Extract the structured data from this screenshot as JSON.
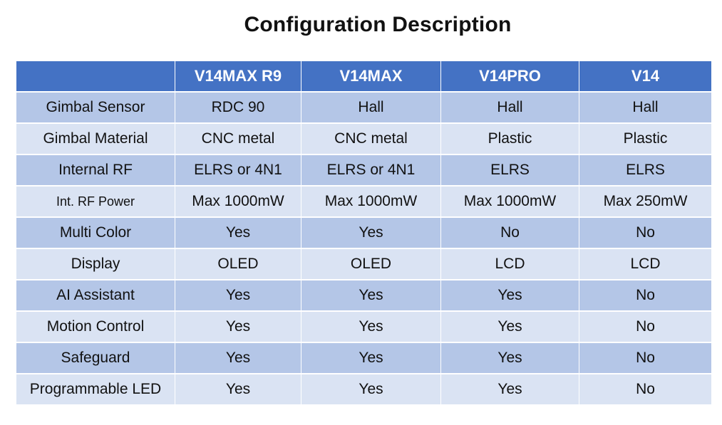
{
  "title": "Configuration Description",
  "table": {
    "headers": [
      "",
      "V14MAX R9",
      "V14MAX",
      "V14PRO",
      "V14"
    ],
    "rows": [
      {
        "label": "Gimbal Sensor",
        "values": [
          "RDC 90",
          "Hall",
          "Hall",
          "Hall"
        ]
      },
      {
        "label": "Gimbal Material",
        "values": [
          "CNC metal",
          "CNC metal",
          "Plastic",
          "Plastic"
        ]
      },
      {
        "label": "Internal RF",
        "values": [
          "ELRS or 4N1",
          "ELRS or 4N1",
          "ELRS",
          "ELRS"
        ]
      },
      {
        "label": "Int. RF Power",
        "values": [
          "Max 1000mW",
          "Max 1000mW",
          "Max 1000mW",
          "Max 250mW"
        ]
      },
      {
        "label": "Multi Color",
        "values": [
          "Yes",
          "Yes",
          "No",
          "No"
        ]
      },
      {
        "label": "Display",
        "values": [
          "OLED",
          "OLED",
          "LCD",
          "LCD"
        ]
      },
      {
        "label": "AI Assistant",
        "values": [
          "Yes",
          "Yes",
          "Yes",
          "No"
        ]
      },
      {
        "label": "Motion Control",
        "values": [
          "Yes",
          "Yes",
          "Yes",
          "No"
        ]
      },
      {
        "label": "Safeguard",
        "values": [
          "Yes",
          "Yes",
          "Yes",
          "No"
        ]
      },
      {
        "label": "Programmable LED",
        "values": [
          "Yes",
          "Yes",
          "Yes",
          "No"
        ]
      }
    ]
  },
  "colors": {
    "header": "#4472c4",
    "row_dark": "#b4c6e7",
    "row_light": "#dae3f3"
  }
}
